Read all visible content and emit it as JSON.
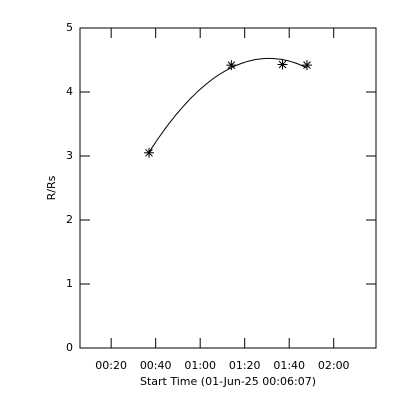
{
  "chart_data": {
    "type": "scatter",
    "x_label": "Start Time (01-Jun-25 00:06:07)",
    "y_label": "R/Rs",
    "series": [
      {
        "x": [
          "00:37",
          "01:14",
          "01:37",
          "01:48"
        ],
        "values": [
          3.05,
          4.42,
          4.43,
          4.42
        ],
        "color": "#000000",
        "marker": "asterisk",
        "fit": "quadratic"
      }
    ],
    "xlim": [
      "00:06",
      "02:19"
    ],
    "xticks": [
      "00:20",
      "00:40",
      "01:00",
      "01:20",
      "01:40",
      "02:00"
    ],
    "ylim": [
      0,
      5
    ],
    "yticks": [
      0,
      1,
      2,
      3,
      4,
      5
    ]
  }
}
